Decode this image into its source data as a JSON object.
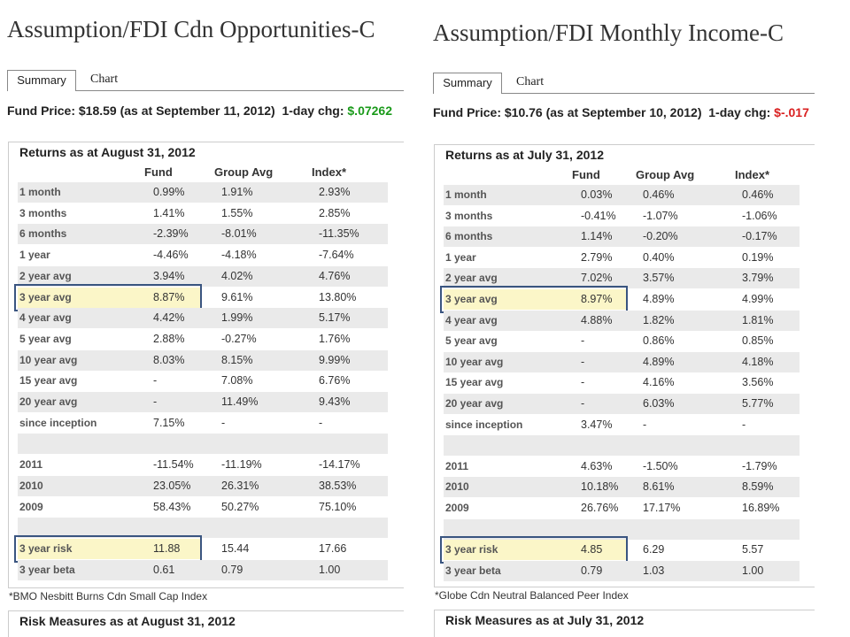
{
  "left": {
    "title": "Assumption/FDI Cdn Opportunities-C",
    "tabs": {
      "summary": "Summary",
      "chart": "Chart"
    },
    "price": {
      "prefix": "Fund Price: $18.59 (as at September 11, 2012)",
      "chg_label": "1-day chg:",
      "chg_value": "$.07262",
      "chg_color": "#1a9a1a"
    },
    "returns_heading": "Returns as at August 31, 2012",
    "columns": [
      "Fund",
      "Group Avg",
      "Index*"
    ],
    "rows": [
      {
        "label": "1 month",
        "fund": "0.99%",
        "group": "1.91%",
        "index": "2.93%"
      },
      {
        "label": "3 months",
        "fund": "1.41%",
        "group": "1.55%",
        "index": "2.85%"
      },
      {
        "label": "6 months",
        "fund": "-2.39%",
        "group": "-8.01%",
        "index": "-11.35%"
      },
      {
        "label": "1 year",
        "fund": "-4.46%",
        "group": "-4.18%",
        "index": "-7.64%"
      },
      {
        "label": "2 year avg",
        "fund": "3.94%",
        "group": "4.02%",
        "index": "4.76%"
      },
      {
        "label": "3 year avg",
        "fund": "8.87%",
        "group": "9.61%",
        "index": "13.80%"
      },
      {
        "label": "4 year avg",
        "fund": "4.42%",
        "group": "1.99%",
        "index": "5.17%"
      },
      {
        "label": "5 year avg",
        "fund": "2.88%",
        "group": "-0.27%",
        "index": "1.76%"
      },
      {
        "label": "10 year avg",
        "fund": "8.03%",
        "group": "8.15%",
        "index": "9.99%"
      },
      {
        "label": "15 year avg",
        "fund": "-",
        "group": "7.08%",
        "index": "6.76%"
      },
      {
        "label": "20 year avg",
        "fund": "-",
        "group": "11.49%",
        "index": "9.43%"
      },
      {
        "label": "since inception",
        "fund": "7.15%",
        "group": "-",
        "index": "-"
      },
      {
        "label": "",
        "fund": "",
        "group": "",
        "index": ""
      },
      {
        "label": "2011",
        "fund": "-11.54%",
        "group": "-11.19%",
        "index": "-14.17%"
      },
      {
        "label": "2010",
        "fund": "23.05%",
        "group": "26.31%",
        "index": "38.53%"
      },
      {
        "label": "2009",
        "fund": "58.43%",
        "group": "50.27%",
        "index": "75.10%"
      },
      {
        "label": "",
        "fund": "",
        "group": "",
        "index": ""
      },
      {
        "label": "3 year risk",
        "fund": "11.88",
        "group": "15.44",
        "index": "17.66"
      },
      {
        "label": "3 year beta",
        "fund": "0.61",
        "group": "0.79",
        "index": "1.00"
      }
    ],
    "footnote": "*BMO Nesbitt Burns Cdn Small Cap Index",
    "risk_heading": "Risk Measures as at August 31, 2012"
  },
  "right": {
    "title": "Assumption/FDI Monthly Income-C",
    "tabs": {
      "summary": "Summary",
      "chart": "Chart"
    },
    "price": {
      "prefix": "Fund Price: $10.76 (as at September 10, 2012)",
      "chg_label": "1-day chg:",
      "chg_value": "$-.017",
      "chg_color": "#d92020"
    },
    "returns_heading": "Returns as at July 31, 2012",
    "columns": [
      "Fund",
      "Group Avg",
      "Index*"
    ],
    "rows": [
      {
        "label": "1 month",
        "fund": "0.03%",
        "group": "0.46%",
        "index": "0.46%"
      },
      {
        "label": "3 months",
        "fund": "-0.41%",
        "group": "-1.07%",
        "index": "-1.06%"
      },
      {
        "label": "6 months",
        "fund": "1.14%",
        "group": "-0.20%",
        "index": "-0.17%"
      },
      {
        "label": "1 year",
        "fund": "2.79%",
        "group": "0.40%",
        "index": "0.19%"
      },
      {
        "label": "2 year avg",
        "fund": "7.02%",
        "group": "3.57%",
        "index": "3.79%"
      },
      {
        "label": "3 year avg",
        "fund": "8.97%",
        "group": "4.89%",
        "index": "4.99%"
      },
      {
        "label": "4 year avg",
        "fund": "4.88%",
        "group": "1.82%",
        "index": "1.81%"
      },
      {
        "label": "5 year avg",
        "fund": "-",
        "group": "0.86%",
        "index": "0.85%"
      },
      {
        "label": "10 year avg",
        "fund": "-",
        "group": "4.89%",
        "index": "4.18%"
      },
      {
        "label": "15 year avg",
        "fund": "-",
        "group": "4.16%",
        "index": "3.56%"
      },
      {
        "label": "20 year avg",
        "fund": "-",
        "group": "6.03%",
        "index": "5.77%"
      },
      {
        "label": "since inception",
        "fund": "3.47%",
        "group": "-",
        "index": "-"
      },
      {
        "label": "",
        "fund": "",
        "group": "",
        "index": ""
      },
      {
        "label": "2011",
        "fund": "4.63%",
        "group": "-1.50%",
        "index": "-1.79%"
      },
      {
        "label": "2010",
        "fund": "10.18%",
        "group": "8.61%",
        "index": "8.59%"
      },
      {
        "label": "2009",
        "fund": "26.76%",
        "group": "17.17%",
        "index": "16.89%"
      },
      {
        "label": "",
        "fund": "",
        "group": "",
        "index": ""
      },
      {
        "label": "3 year risk",
        "fund": "4.85",
        "group": "6.29",
        "index": "5.57"
      },
      {
        "label": "3 year beta",
        "fund": "0.79",
        "group": "1.03",
        "index": "1.00"
      }
    ],
    "footnote": "*Globe Cdn Neutral Balanced Peer Index",
    "risk_heading": "Risk Measures as at July 31, 2012"
  }
}
